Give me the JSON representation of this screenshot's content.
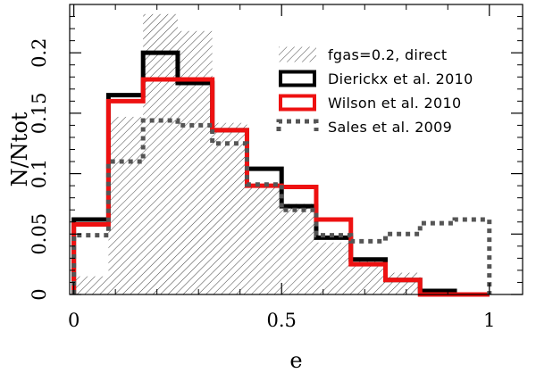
{
  "chart_data": {
    "type": "histogram-step",
    "xlabel": "e",
    "ylabel": "N/Ntot",
    "xlim": [
      -0.01,
      1.08
    ],
    "ylim": [
      0,
      0.24
    ],
    "bin_edges": [
      0,
      0.0833,
      0.1667,
      0.25,
      0.3333,
      0.4167,
      0.5,
      0.5833,
      0.6667,
      0.75,
      0.8333,
      0.9167,
      1.0
    ],
    "x_ticks": [
      {
        "value": 0,
        "label": "0"
      },
      {
        "value": 0.5,
        "label": "0.5"
      },
      {
        "value": 1,
        "label": "1"
      }
    ],
    "y_ticks": [
      {
        "value": 0,
        "label": "0"
      },
      {
        "value": 0.05,
        "label": "0.05"
      },
      {
        "value": 0.1,
        "label": "0.1"
      },
      {
        "value": 0.15,
        "label": "0.15"
      },
      {
        "value": 0.2,
        "label": "0.2"
      }
    ],
    "series": [
      {
        "name": "fgas=0.2, direct",
        "style": "hatched",
        "color": "#333333",
        "values": [
          0.015,
          0.147,
          0.232,
          0.218,
          0.142,
          0.09,
          0.075,
          0.043,
          0.028,
          0.018,
          0.003,
          0.0
        ]
      },
      {
        "name": "Dierickx et al. 2010",
        "style": "solid",
        "color": "#000000",
        "values": [
          0.062,
          0.165,
          0.2,
          0.175,
          0.136,
          0.104,
          0.073,
          0.047,
          0.029,
          0.012,
          0.003,
          0.0
        ]
      },
      {
        "name": "Wilson et al. 2010",
        "style": "solid",
        "color": "#ee1111",
        "values": [
          0.058,
          0.16,
          0.178,
          0.178,
          0.136,
          0.09,
          0.089,
          0.062,
          0.025,
          0.012,
          0.0,
          0.0
        ]
      },
      {
        "name": "Sales et al. 2009",
        "style": "dotted",
        "color": "#555555",
        "values": [
          0.049,
          0.11,
          0.144,
          0.14,
          0.125,
          0.091,
          0.07,
          0.049,
          0.044,
          0.05,
          0.059,
          0.062
        ]
      }
    ],
    "legend": {
      "placement": "top-right",
      "entries": [
        {
          "label": "fgas=0.2, direct",
          "style": "hatched"
        },
        {
          "label": "Dierickx et al. 2010",
          "style": "black-box"
        },
        {
          "label": "Wilson et al. 2010",
          "style": "red-box"
        },
        {
          "label": "Sales et al. 2009",
          "style": "dotted"
        }
      ]
    },
    "grid": false
  }
}
